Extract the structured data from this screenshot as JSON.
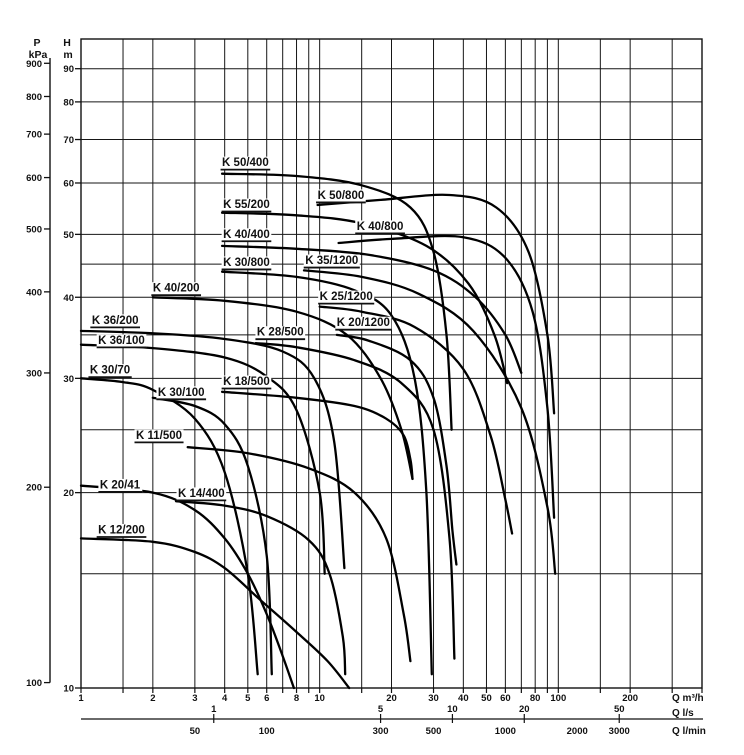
{
  "colors": {
    "ink": "#111111",
    "grid": "#161616",
    "curve": "#000000",
    "background": "#ffffff"
  },
  "chart_data": {
    "type": "line",
    "scale": "log-log",
    "grid": true,
    "axes": {
      "y_head": {
        "title_lines": [
          "H",
          "m"
        ],
        "unit": "m",
        "range": [
          10,
          100
        ],
        "tick_labels": [
          10,
          20,
          30,
          40,
          50,
          60,
          70,
          80,
          90
        ],
        "gridlines": [
          15,
          20,
          25,
          30,
          35,
          40,
          45,
          50,
          60,
          70,
          80,
          90
        ]
      },
      "y_pressure": {
        "title_lines": [
          "P",
          "kPa"
        ],
        "unit": "kPa",
        "tick_labels": [
          900,
          800,
          700,
          600,
          500,
          400,
          300,
          200,
          100
        ],
        "kpa_per_m": 9.81
      },
      "x_flow_m3h": {
        "title": "Q m³/h",
        "range": [
          1,
          400
        ],
        "tick_labels": [
          1,
          2,
          3,
          4,
          5,
          6,
          8,
          10,
          20,
          30,
          40,
          50,
          60,
          80,
          100,
          200
        ],
        "gridlines": [
          1.5,
          2,
          3,
          4,
          5,
          6,
          7,
          8,
          9,
          10,
          15,
          20,
          30,
          40,
          50,
          60,
          70,
          80,
          90,
          100,
          150,
          200,
          300
        ]
      },
      "x_flow_ls": {
        "title": "Q l/s",
        "tick_labels": [
          1,
          5,
          10,
          20,
          50
        ],
        "m3h_per_unit": 3.6
      },
      "x_flow_lmin": {
        "title": "Q l/min",
        "tick_labels": [
          50,
          100,
          300,
          500,
          1000,
          2000,
          3000
        ],
        "m3h_per_unit": 0.06
      }
    },
    "series": [
      {
        "name": "K 50/400",
        "label_anchor": [
          3.9,
          63.7
        ],
        "points": [
          [
            3.9,
            62
          ],
          [
            8,
            61.5
          ],
          [
            15,
            59.5
          ],
          [
            24,
            55
          ],
          [
            30,
            47
          ],
          [
            34,
            35
          ],
          [
            35.7,
            25
          ]
        ]
      },
      {
        "name": "K 50/800",
        "label_anchor": [
          9.8,
          56.7
        ],
        "points": [
          [
            9.8,
            55.5
          ],
          [
            18,
            56.5
          ],
          [
            35,
            57.5
          ],
          [
            55,
            55
          ],
          [
            75,
            47
          ],
          [
            90,
            35
          ],
          [
            96,
            26.5
          ]
        ]
      },
      {
        "name": "K 55/200",
        "label_anchor": [
          3.94,
          54.9
        ],
        "points": [
          [
            3.9,
            54
          ],
          [
            8,
            53.5
          ],
          [
            15,
            52
          ],
          [
            28,
            48
          ],
          [
            42,
            42
          ],
          [
            54,
            35
          ],
          [
            61,
            29.5
          ]
        ]
      },
      {
        "name": "K 40/400",
        "label_anchor": [
          3.94,
          49.4
        ],
        "points": [
          [
            3.9,
            48
          ],
          [
            8,
            47.5
          ],
          [
            16,
            46.5
          ],
          [
            30,
            44
          ],
          [
            45,
            40
          ],
          [
            60,
            35
          ],
          [
            70,
            30.6
          ]
        ]
      },
      {
        "name": "K 40/800",
        "label_anchor": [
          14.3,
          50.8
        ],
        "points": [
          [
            12,
            48.5
          ],
          [
            20,
            49.2
          ],
          [
            40,
            49.5
          ],
          [
            60,
            46
          ],
          [
            78,
            38
          ],
          [
            90,
            27
          ],
          [
            96,
            18.3
          ]
        ]
      },
      {
        "name": "K 30/800",
        "label_anchor": [
          3.94,
          44.7
        ],
        "points": [
          [
            3.9,
            43.8
          ],
          [
            8,
            43
          ],
          [
            14,
            41
          ],
          [
            20,
            37.5
          ],
          [
            25,
            30
          ],
          [
            28,
            20
          ],
          [
            29.5,
            10.5
          ]
        ]
      },
      {
        "name": "K 35/1200",
        "label_anchor": [
          8.7,
          45.0
        ],
        "points": [
          [
            8.6,
            44
          ],
          [
            15,
            43
          ],
          [
            26,
            40.5
          ],
          [
            44,
            35.5
          ],
          [
            70,
            27
          ],
          [
            90,
            19
          ],
          [
            97,
            15
          ]
        ]
      },
      {
        "name": "K 40/200",
        "label_anchor": [
          2.0,
          40.8
        ],
        "points": [
          [
            2,
            40
          ],
          [
            4,
            39.5
          ],
          [
            8,
            38
          ],
          [
            13,
            35
          ],
          [
            18,
            30
          ],
          [
            22,
            25
          ],
          [
            24.5,
            21
          ]
        ]
      },
      {
        "name": "K 25/1200",
        "label_anchor": [
          10.0,
          39.6
        ],
        "points": [
          [
            10,
            38.7
          ],
          [
            15,
            38
          ],
          [
            25,
            36
          ],
          [
            40,
            31
          ],
          [
            52,
            24.5
          ],
          [
            60,
            19.5
          ],
          [
            64,
            17.3
          ]
        ]
      },
      {
        "name": "K 36/200",
        "label_anchor": [
          1.11,
          36.4
        ],
        "points": [
          [
            1,
            35.5
          ],
          [
            2,
            35.2
          ],
          [
            4,
            34.5
          ],
          [
            7,
            33
          ],
          [
            9.5,
            30
          ],
          [
            11.5,
            24
          ],
          [
            12.7,
            15.3
          ]
        ]
      },
      {
        "name": "K 28/500",
        "label_anchor": [
          5.46,
          34.9
        ],
        "points": [
          [
            5.4,
            34
          ],
          [
            8,
            33.5
          ],
          [
            14,
            32
          ],
          [
            22,
            29.5
          ],
          [
            30,
            25
          ],
          [
            35,
            17
          ],
          [
            36.7,
            11.1
          ]
        ]
      },
      {
        "name": "K 20/1200",
        "label_anchor": [
          11.8,
          36.1
        ],
        "points": [
          [
            11.8,
            35
          ],
          [
            16,
            34.3
          ],
          [
            24,
            32
          ],
          [
            30,
            28
          ],
          [
            34,
            22
          ],
          [
            36,
            17.5
          ],
          [
            37.4,
            15.5
          ]
        ]
      },
      {
        "name": "K 36/100",
        "label_anchor": [
          1.18,
          33.9
        ],
        "points": [
          [
            1,
            33.8
          ],
          [
            2,
            33.4
          ],
          [
            4,
            32.3
          ],
          [
            6,
            30.2
          ],
          [
            8,
            26.8
          ],
          [
            10,
            20
          ],
          [
            10.5,
            15
          ]
        ]
      },
      {
        "name": "K 30/70",
        "label_anchor": [
          1.09,
          30.5
        ],
        "points": [
          [
            1,
            30
          ],
          [
            1.5,
            29.6
          ],
          [
            2,
            28.8
          ],
          [
            3,
            26
          ],
          [
            4,
            21.5
          ],
          [
            5,
            15
          ],
          [
            5.5,
            10.5
          ]
        ]
      },
      {
        "name": "K 18/500",
        "label_anchor": [
          3.94,
          29.3
        ],
        "points": [
          [
            3.9,
            28.6
          ],
          [
            8,
            28
          ],
          [
            14,
            27.2
          ],
          [
            19,
            26
          ],
          [
            22.5,
            24.5
          ],
          [
            24,
            22.5
          ],
          [
            24.5,
            21
          ]
        ]
      },
      {
        "name": "K 30/100",
        "label_anchor": [
          2.1,
          28.2
        ],
        "points": [
          [
            2,
            28
          ],
          [
            3,
            27.2
          ],
          [
            4,
            25.5
          ],
          [
            5,
            22
          ],
          [
            6,
            16
          ],
          [
            6.3,
            10.5
          ]
        ]
      },
      {
        "name": "K 11/500",
        "label_anchor": [
          1.7,
          24.2
        ],
        "points": [
          [
            2.8,
            23.5
          ],
          [
            5,
            23
          ],
          [
            9,
            21.8
          ],
          [
            14,
            20
          ],
          [
            19,
            17
          ],
          [
            22.5,
            13
          ],
          [
            24,
            11
          ]
        ]
      },
      {
        "name": "K 20/41",
        "label_anchor": [
          1.2,
          20.3
        ],
        "points": [
          [
            1,
            20.5
          ],
          [
            2,
            20
          ],
          [
            3,
            18.8
          ],
          [
            4,
            17
          ],
          [
            5,
            15
          ],
          [
            6,
            13
          ],
          [
            7,
            11.2
          ],
          [
            7.8,
            10
          ]
        ]
      },
      {
        "name": "K 14/400",
        "label_anchor": [
          2.55,
          19.7
        ],
        "points": [
          [
            2.5,
            19.4
          ],
          [
            4,
            19.1
          ],
          [
            6,
            18.4
          ],
          [
            9,
            16.9
          ],
          [
            11,
            15
          ],
          [
            12.5,
            12
          ],
          [
            12.8,
            10.5
          ]
        ]
      },
      {
        "name": "K 12/200",
        "label_anchor": [
          1.18,
          17.3
        ],
        "points": [
          [
            1,
            17
          ],
          [
            2,
            16.8
          ],
          [
            3,
            16.2
          ],
          [
            4,
            15.3
          ],
          [
            5.6,
            13.7
          ],
          [
            8,
            12.2
          ],
          [
            10.8,
            11
          ],
          [
            13.3,
            10
          ]
        ]
      }
    ]
  }
}
